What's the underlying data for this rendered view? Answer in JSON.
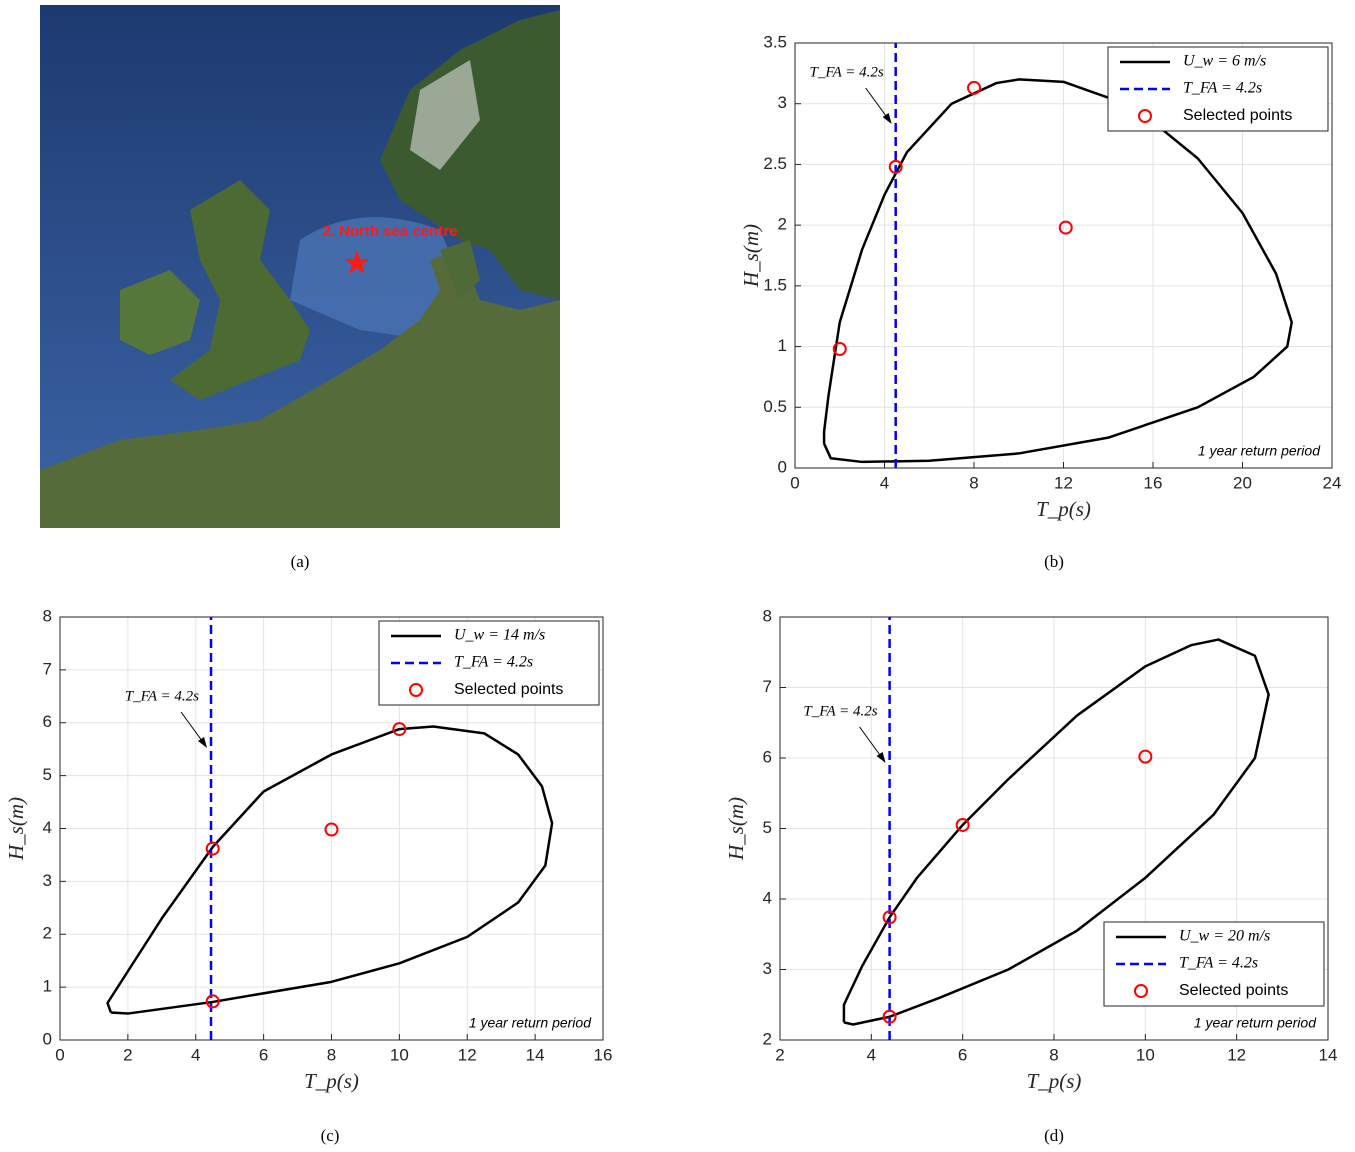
{
  "map": {
    "label": "2. North sea centre",
    "caption": "(a)"
  },
  "chart_data": [
    {
      "type": "line",
      "caption": "(b)",
      "xlabel": "T_p(s)",
      "ylabel": "H_s(m)",
      "annotation": "T_FA = 4.2s",
      "note": "1 year return period",
      "xlim": [
        0,
        24
      ],
      "ylim": [
        0,
        3.5
      ],
      "xticks": [
        0,
        4,
        8,
        12,
        16,
        20,
        24
      ],
      "yticks": [
        0,
        0.5,
        1,
        1.5,
        2,
        2.5,
        3,
        3.5
      ],
      "grid": true,
      "legend": "top-right",
      "series": [
        {
          "name": "U_w = 6 m/s",
          "color": "#000000",
          "style": "solid",
          "x": [
            1.3,
            1.6,
            3,
            6,
            10,
            14,
            18,
            20.5,
            22,
            22.2,
            21.5,
            20,
            18,
            16,
            14,
            12,
            10,
            9,
            7,
            5,
            4,
            3,
            2,
            1.5,
            1.3,
            1.3
          ],
          "values": [
            0.2,
            0.08,
            0.05,
            0.06,
            0.12,
            0.25,
            0.5,
            0.75,
            1.0,
            1.2,
            1.6,
            2.1,
            2.55,
            2.85,
            3.05,
            3.18,
            3.2,
            3.17,
            3.0,
            2.6,
            2.25,
            1.8,
            1.2,
            0.6,
            0.3,
            0.2
          ]
        },
        {
          "name": "T_FA = 4.2s",
          "color": "#0000ff",
          "style": "dashed",
          "x": [
            4.5,
            4.5
          ],
          "values": [
            0,
            3.5
          ]
        },
        {
          "name": "Selected points",
          "color": "#ff0000",
          "style": "marker",
          "x": [
            2,
            4.5,
            8,
            12.1
          ],
          "values": [
            0.98,
            2.48,
            3.13,
            1.98
          ]
        }
      ]
    },
    {
      "type": "line",
      "caption": "(c)",
      "xlabel": "T_p(s)",
      "ylabel": "H_s(m)",
      "annotation": "T_FA = 4.2s",
      "note": "1 year return period",
      "xlim": [
        0,
        16
      ],
      "ylim": [
        0,
        8
      ],
      "xticks": [
        0,
        2,
        4,
        6,
        8,
        10,
        12,
        14,
        16
      ],
      "yticks": [
        0,
        1,
        2,
        3,
        4,
        5,
        6,
        7,
        8
      ],
      "grid": true,
      "legend": "top-right",
      "series": [
        {
          "name": "U_w = 14 m/s",
          "color": "#000000",
          "style": "solid",
          "x": [
            1.5,
            2,
            4.5,
            8,
            10,
            12,
            13.5,
            14.3,
            14.5,
            14.2,
            13.5,
            12.5,
            11,
            10,
            8,
            6,
            4.5,
            3,
            2,
            1.4,
            1.5
          ],
          "values": [
            0.52,
            0.5,
            0.72,
            1.1,
            1.45,
            1.95,
            2.6,
            3.3,
            4.1,
            4.8,
            5.4,
            5.8,
            5.93,
            5.88,
            5.4,
            4.7,
            3.65,
            2.3,
            1.3,
            0.7,
            0.52
          ]
        },
        {
          "name": "T_FA = 4.2s",
          "color": "#0000ff",
          "style": "dashed",
          "x": [
            4.45,
            4.45
          ],
          "values": [
            0,
            8
          ]
        },
        {
          "name": "Selected points",
          "color": "#ff0000",
          "style": "marker",
          "x": [
            4.5,
            4.5,
            8,
            10
          ],
          "values": [
            3.62,
            0.73,
            3.98,
            5.88
          ]
        }
      ]
    },
    {
      "type": "line",
      "caption": "(d)",
      "xlabel": "T_p(s)",
      "ylabel": "H_s(m)",
      "annotation": "T_FA = 4.2s",
      "note": "1 year return period",
      "xlim": [
        2,
        14
      ],
      "ylim": [
        2,
        8
      ],
      "xticks": [
        2,
        4,
        6,
        8,
        10,
        12,
        14
      ],
      "yticks": [
        2,
        3,
        4,
        5,
        6,
        7,
        8
      ],
      "grid": true,
      "legend": "bottom-right",
      "series": [
        {
          "name": "U_w = 20 m/s",
          "color": "#000000",
          "style": "solid",
          "x": [
            3.4,
            3.6,
            4.4,
            5.5,
            7,
            8.5,
            10,
            11.5,
            12.4,
            12.7,
            12.4,
            11.6,
            11,
            10,
            8.5,
            7,
            6,
            5,
            4.4,
            3.8,
            3.4,
            3.4
          ],
          "values": [
            2.25,
            2.22,
            2.33,
            2.6,
            3.0,
            3.55,
            4.3,
            5.2,
            6.0,
            6.9,
            7.45,
            7.68,
            7.6,
            7.3,
            6.6,
            5.7,
            5.05,
            4.3,
            3.74,
            3.05,
            2.5,
            2.25
          ]
        },
        {
          "name": "T_FA = 4.2s",
          "color": "#0000ff",
          "style": "dashed",
          "x": [
            4.4,
            4.4
          ],
          "values": [
            2,
            8
          ]
        },
        {
          "name": "Selected points",
          "color": "#ff0000",
          "style": "marker",
          "x": [
            4.4,
            4.4,
            6,
            10
          ],
          "values": [
            3.74,
            2.33,
            5.05,
            6.02
          ]
        }
      ]
    }
  ]
}
